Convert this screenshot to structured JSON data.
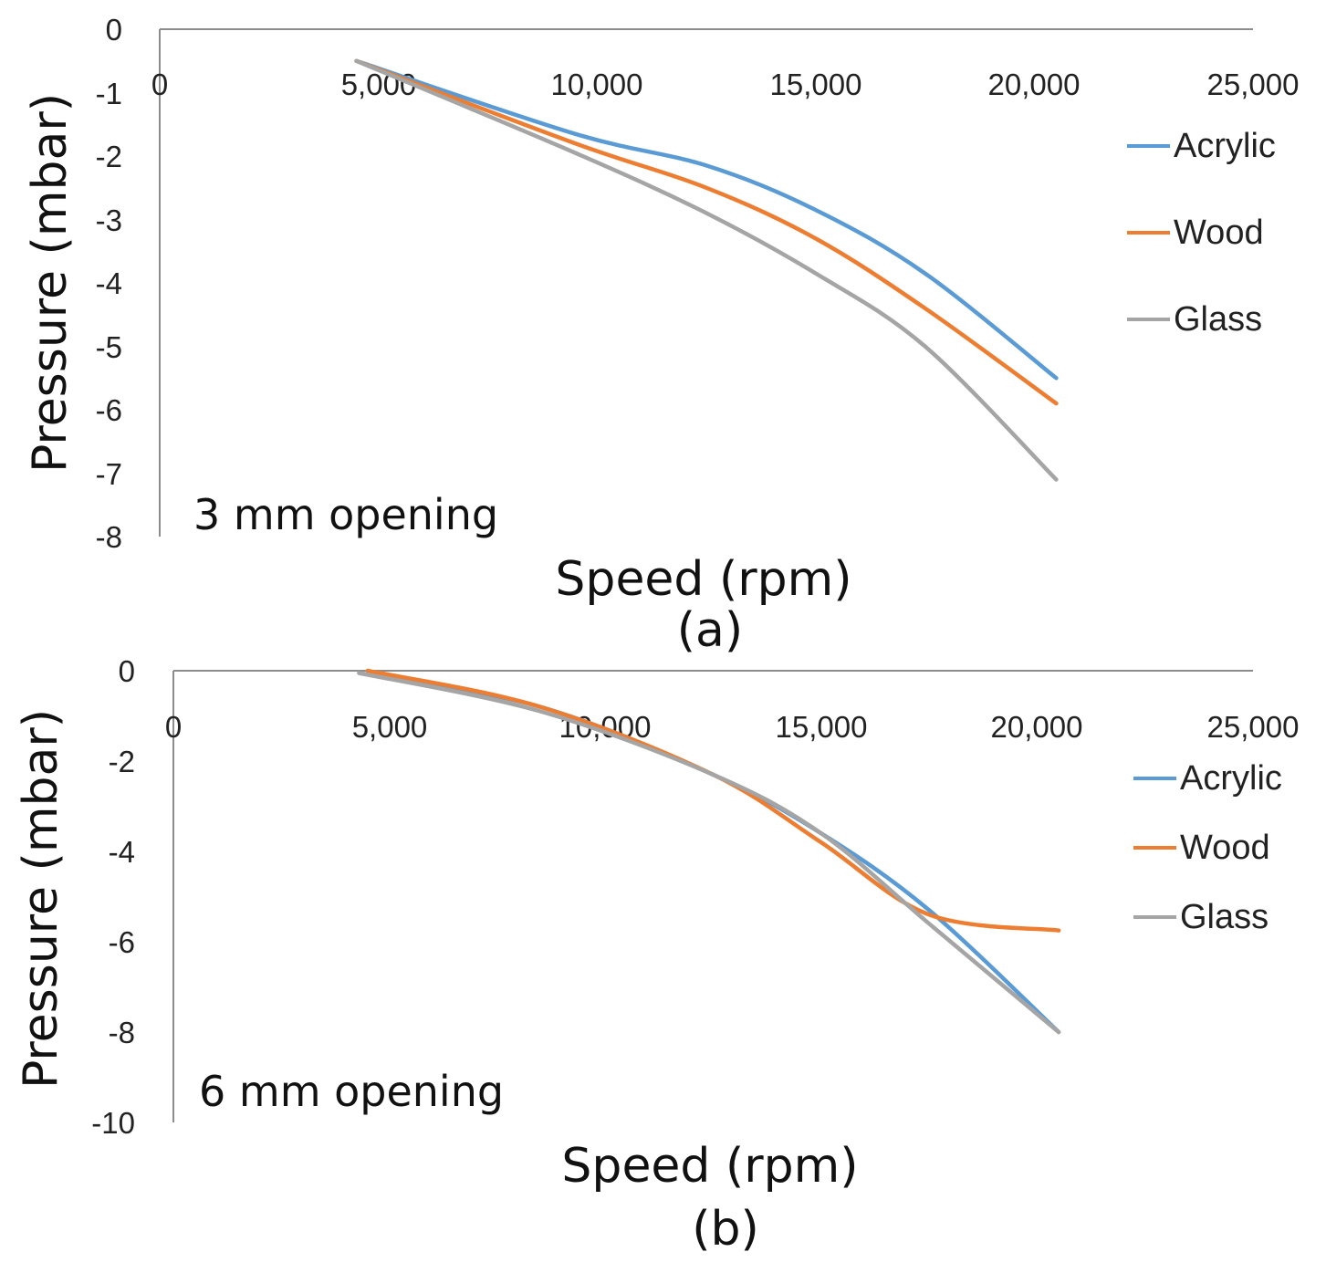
{
  "chart_data": [
    {
      "type": "line",
      "xlabel": "Speed (rpm)",
      "ylabel": "Pressure (mbar)",
      "xlim": [
        0,
        25000
      ],
      "ylim": [
        -8,
        0
      ],
      "x_ticks": [
        "0",
        "5,000",
        "10,000",
        "15,000",
        "20,000",
        "25,000"
      ],
      "y_ticks": [
        "0",
        "-1",
        "-2",
        "-3",
        "-4",
        "-5",
        "-6",
        "-7",
        "-8"
      ],
      "annotation": "3 mm opening",
      "caption": "(a)",
      "grid": false,
      "legend_position": "right",
      "series": [
        {
          "name": "Acrylic",
          "color": "#5b9bd5",
          "points": [
            [
              4500,
              -0.5
            ],
            [
              9500,
              -1.65
            ],
            [
              12500,
              -2.15
            ],
            [
              15000,
              -2.85
            ],
            [
              17500,
              -3.85
            ],
            [
              20500,
              -5.5
            ]
          ]
        },
        {
          "name": "Wood",
          "color": "#ed7d31",
          "points": [
            [
              4500,
              -0.5
            ],
            [
              9500,
              -1.8
            ],
            [
              12500,
              -2.5
            ],
            [
              15000,
              -3.3
            ],
            [
              17500,
              -4.4
            ],
            [
              20500,
              -5.9
            ]
          ]
        },
        {
          "name": "Glass",
          "color": "#a5a5a5",
          "points": [
            [
              4500,
              -0.5
            ],
            [
              9500,
              -1.95
            ],
            [
              12500,
              -2.9
            ],
            [
              15000,
              -3.85
            ],
            [
              17500,
              -5.0
            ],
            [
              20500,
              -7.1
            ]
          ]
        }
      ]
    },
    {
      "type": "line",
      "xlabel": "Speed (rpm)",
      "ylabel": "Pressure (mbar)",
      "xlim": [
        0,
        25000
      ],
      "ylim": [
        -10,
        0
      ],
      "x_ticks": [
        "0",
        "5,000",
        "10,000",
        "15,000",
        "20,000",
        "25,000"
      ],
      "y_ticks": [
        "0",
        "-2",
        "-4",
        "-6",
        "-8",
        "-10"
      ],
      "annotation": "6 mm opening",
      "caption": "(b)",
      "grid": false,
      "legend_position": "right",
      "series": [
        {
          "name": "Acrylic",
          "color": "#5b9bd5",
          "points": [
            [
              4300,
              -0.05
            ],
            [
              8500,
              -0.8
            ],
            [
              12500,
              -2.3
            ],
            [
              15000,
              -3.6
            ],
            [
              17500,
              -5.3
            ],
            [
              20500,
              -8.0
            ]
          ]
        },
        {
          "name": "Wood",
          "color": "#ed7d31",
          "points": [
            [
              4500,
              0.0
            ],
            [
              8500,
              -0.8
            ],
            [
              12500,
              -2.3
            ],
            [
              15000,
              -3.8
            ],
            [
              17500,
              -5.4
            ],
            [
              20500,
              -5.75
            ]
          ]
        },
        {
          "name": "Glass",
          "color": "#a5a5a5",
          "points": [
            [
              4300,
              -0.05
            ],
            [
              8500,
              -0.9
            ],
            [
              12500,
              -2.3
            ],
            [
              15000,
              -3.6
            ],
            [
              17500,
              -5.6
            ],
            [
              20500,
              -8.0
            ]
          ]
        }
      ]
    }
  ]
}
